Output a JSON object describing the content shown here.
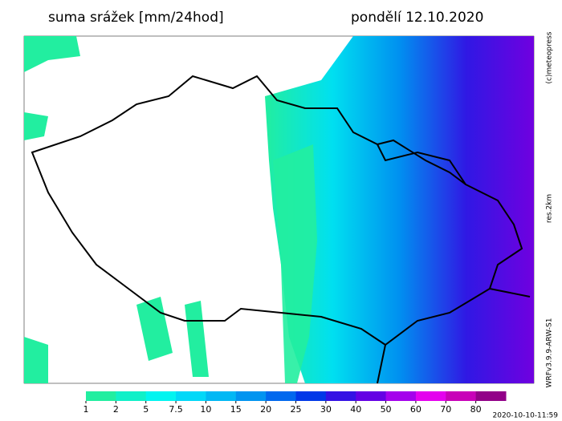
{
  "header": {
    "title": "suma srážek [mm/24hod]",
    "date": "pondělí 12.10.2020"
  },
  "side_labels": {
    "copyright": "(c)meteopress",
    "resolution": "res.2km",
    "model": "WRFv3.9.9-ARW-S1"
  },
  "legend": {
    "levels": [
      1,
      2,
      5,
      7.5,
      10,
      15,
      20,
      25,
      30,
      40,
      50,
      60,
      70,
      80
    ],
    "colors": [
      "#22eea0",
      "#10f0c8",
      "#00f4f0",
      "#00d8f8",
      "#00b8f4",
      "#0094f0",
      "#0068ee",
      "#0038e8",
      "#3412e4",
      "#6400e4",
      "#a400ec",
      "#e400ee",
      "#c800b8",
      "#920088"
    ]
  },
  "footer": {
    "timestamp": "2020-10-10-11:59"
  }
}
